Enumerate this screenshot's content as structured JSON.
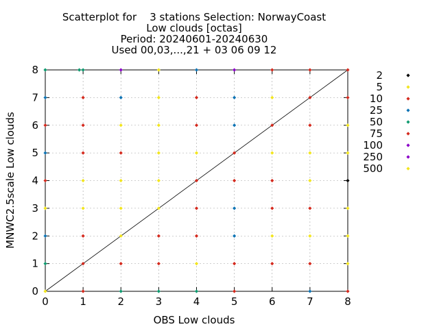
{
  "chart_data": {
    "type": "scatter",
    "title_lines": [
      "Scatterplot for    3 stations Selection: NorwayCoast",
      "Low clouds [octas]",
      "Period: 20240601-20240630",
      "Used 00,03,...,21 + 03 06 09 12"
    ],
    "xlabel": "OBS Low clouds",
    "ylabel": "MNWC2.5scale Low clouds",
    "xlim": [
      0,
      8
    ],
    "ylim": [
      0,
      8
    ],
    "x_ticks": [
      "0",
      "1",
      "2",
      "3",
      "4",
      "5",
      "6",
      "7",
      "8"
    ],
    "y_ticks": [
      "0",
      "1",
      "2",
      "3",
      "4",
      "5",
      "6",
      "7",
      "8"
    ],
    "grid": true,
    "diagonal_line": true,
    "legend_position": "right",
    "legend": [
      {
        "label": "2",
        "color": "#000000"
      },
      {
        "label": "5",
        "color": "#f2e51e"
      },
      {
        "label": "10",
        "color": "#d42a1e"
      },
      {
        "label": "25",
        "color": "#0f74b4"
      },
      {
        "label": "50",
        "color": "#0e9a6f"
      },
      {
        "label": "75",
        "color": "#d42a1e"
      },
      {
        "label": "100",
        "color": "#8a00c8"
      },
      {
        "label": "250",
        "color": "#8a00c8"
      },
      {
        "label": "500",
        "color": "#f2e51e"
      }
    ],
    "points": [
      {
        "x": 0,
        "y": 8,
        "color": "#0e9a6f"
      },
      {
        "x": 0.9,
        "y": 8,
        "color": "#0e9a6f"
      },
      {
        "x": 1,
        "y": 8,
        "color": "#0e9a6f"
      },
      {
        "x": 2,
        "y": 8,
        "color": "#8a00c8"
      },
      {
        "x": 3,
        "y": 8,
        "color": "#f2e51e"
      },
      {
        "x": 4,
        "y": 8,
        "color": "#0f74b4"
      },
      {
        "x": 5,
        "y": 8,
        "color": "#8a00c8"
      },
      {
        "x": 6,
        "y": 8,
        "color": "#d42a1e"
      },
      {
        "x": 7,
        "y": 8,
        "color": "#d42a1e"
      },
      {
        "x": 8,
        "y": 8,
        "color": "#d42a1e"
      },
      {
        "x": 0,
        "y": 7,
        "color": "#0f74b4"
      },
      {
        "x": 1,
        "y": 7,
        "color": "#d42a1e"
      },
      {
        "x": 2,
        "y": 7,
        "color": "#0f74b4"
      },
      {
        "x": 3,
        "y": 7,
        "color": "#f2e51e"
      },
      {
        "x": 4,
        "y": 7,
        "color": "#d42a1e"
      },
      {
        "x": 5,
        "y": 7,
        "color": "#0f74b4"
      },
      {
        "x": 6,
        "y": 7,
        "color": "#f2e51e"
      },
      {
        "x": 7,
        "y": 7,
        "color": "#d42a1e"
      },
      {
        "x": 8,
        "y": 7,
        "color": "#d42a1e"
      },
      {
        "x": 0,
        "y": 6,
        "color": "#d42a1e"
      },
      {
        "x": 1,
        "y": 6,
        "color": "#d42a1e"
      },
      {
        "x": 2,
        "y": 6,
        "color": "#f2e51e"
      },
      {
        "x": 3,
        "y": 6,
        "color": "#f2e51e"
      },
      {
        "x": 4,
        "y": 6,
        "color": "#d42a1e"
      },
      {
        "x": 5,
        "y": 6,
        "color": "#0f74b4"
      },
      {
        "x": 6,
        "y": 6,
        "color": "#d42a1e"
      },
      {
        "x": 7,
        "y": 6,
        "color": "#d42a1e"
      },
      {
        "x": 8,
        "y": 6,
        "color": "#f2e51e"
      },
      {
        "x": 0,
        "y": 5,
        "color": "#0f74b4"
      },
      {
        "x": 1,
        "y": 5,
        "color": "#d42a1e"
      },
      {
        "x": 2,
        "y": 5,
        "color": "#d42a1e"
      },
      {
        "x": 3,
        "y": 5,
        "color": "#f2e51e"
      },
      {
        "x": 4,
        "y": 5,
        "color": "#f2e51e"
      },
      {
        "x": 5,
        "y": 5,
        "color": "#d42a1e"
      },
      {
        "x": 6,
        "y": 5,
        "color": "#f2e51e"
      },
      {
        "x": 7,
        "y": 5,
        "color": "#f2e51e"
      },
      {
        "x": 8,
        "y": 5,
        "color": "#f2e51e"
      },
      {
        "x": 0,
        "y": 4,
        "color": "#d42a1e"
      },
      {
        "x": 1,
        "y": 4,
        "color": "#f2e51e"
      },
      {
        "x": 2,
        "y": 4,
        "color": "#f2e51e"
      },
      {
        "x": 3,
        "y": 4,
        "color": "#f2e51e"
      },
      {
        "x": 4,
        "y": 4,
        "color": "#d42a1e"
      },
      {
        "x": 5,
        "y": 4,
        "color": "#d42a1e"
      },
      {
        "x": 6,
        "y": 4,
        "color": "#d42a1e"
      },
      {
        "x": 7,
        "y": 4,
        "color": "#f2e51e"
      },
      {
        "x": 8,
        "y": 4,
        "color": "#000000"
      },
      {
        "x": 0,
        "y": 3,
        "color": "#f2e51e"
      },
      {
        "x": 1,
        "y": 3,
        "color": "#f2e51e"
      },
      {
        "x": 2,
        "y": 3,
        "color": "#f2e51e"
      },
      {
        "x": 3,
        "y": 3,
        "color": "#f2e51e"
      },
      {
        "x": 4,
        "y": 3,
        "color": "#d42a1e"
      },
      {
        "x": 5,
        "y": 3,
        "color": "#0f74b4"
      },
      {
        "x": 6,
        "y": 3,
        "color": "#d42a1e"
      },
      {
        "x": 7,
        "y": 3,
        "color": "#d42a1e"
      },
      {
        "x": 8,
        "y": 3,
        "color": "#f2e51e"
      },
      {
        "x": 0,
        "y": 2,
        "color": "#0f74b4"
      },
      {
        "x": 1,
        "y": 2,
        "color": "#d42a1e"
      },
      {
        "x": 2,
        "y": 2,
        "color": "#f2e51e"
      },
      {
        "x": 3,
        "y": 2,
        "color": "#d42a1e"
      },
      {
        "x": 4,
        "y": 2,
        "color": "#d42a1e"
      },
      {
        "x": 5,
        "y": 2,
        "color": "#0f74b4"
      },
      {
        "x": 6,
        "y": 2,
        "color": "#f2e51e"
      },
      {
        "x": 7,
        "y": 2,
        "color": "#f2e51e"
      },
      {
        "x": 8,
        "y": 2,
        "color": "#f2e51e"
      },
      {
        "x": 0,
        "y": 1,
        "color": "#0e9a6f"
      },
      {
        "x": 1,
        "y": 1,
        "color": "#d42a1e"
      },
      {
        "x": 2,
        "y": 1,
        "color": "#d42a1e"
      },
      {
        "x": 3,
        "y": 1,
        "color": "#d42a1e"
      },
      {
        "x": 4,
        "y": 1,
        "color": "#f2e51e"
      },
      {
        "x": 5,
        "y": 1,
        "color": "#d42a1e"
      },
      {
        "x": 6,
        "y": 1,
        "color": "#d42a1e"
      },
      {
        "x": 7,
        "y": 1,
        "color": "#d42a1e"
      },
      {
        "x": 8,
        "y": 1,
        "color": "#f2e51e"
      },
      {
        "x": 0,
        "y": 0,
        "color": "#f2e51e"
      },
      {
        "x": 1,
        "y": 0,
        "color": "#d42a1e"
      },
      {
        "x": 2,
        "y": 0,
        "color": "#0e9a6f"
      },
      {
        "x": 3,
        "y": 0,
        "color": "#0e9a6f"
      },
      {
        "x": 4,
        "y": 0,
        "color": "#0e9a6f"
      },
      {
        "x": 5,
        "y": 0,
        "color": "#d42a1e"
      },
      {
        "x": 7,
        "y": 0,
        "color": "#0f74b4"
      },
      {
        "x": 8,
        "y": 0,
        "color": "#d42a1e"
      }
    ]
  }
}
